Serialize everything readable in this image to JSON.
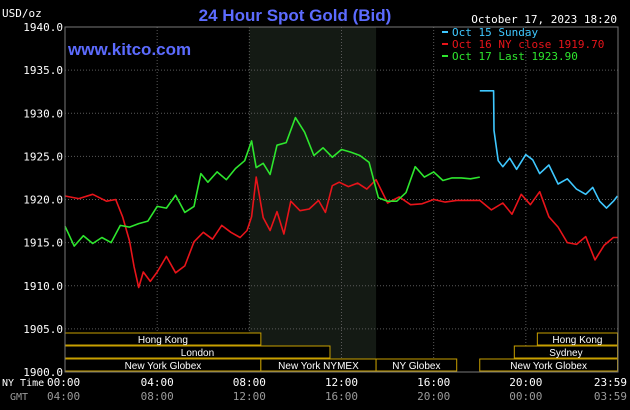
{
  "header": {
    "unit": "USD/oz",
    "title": "24 Hour Spot Gold (Bid)",
    "site": "www.kitco.com",
    "timestamp": "October 17, 2023 18:20"
  },
  "legend": [
    {
      "label": "Oct 15 Sunday",
      "color": "#3fc8ff"
    },
    {
      "label": "Oct 16 NY close 1919.70",
      "color": "#e8141a"
    },
    {
      "label": "Oct 17 Last 1923.90",
      "color": "#2ee62e"
    }
  ],
  "x_axis": {
    "ny_time_label": "NY Time",
    "gmt_label": "GMT",
    "ny_ticks": [
      "00:00",
      "04:00",
      "08:00",
      "12:00",
      "16:00",
      "20:00",
      "23:59"
    ],
    "gmt_ticks": [
      "04:00",
      "08:00",
      "12:00",
      "16:00",
      "20:00",
      "00:00",
      "03:59"
    ]
  },
  "sessions": [
    {
      "label": "Hong Kong",
      "row": 0,
      "start": 0,
      "end": 8.5
    },
    {
      "label": "London",
      "row": 1,
      "start": 0,
      "end": 11.5
    },
    {
      "label": "New York Globex",
      "row": 2,
      "start": 0,
      "end": 8.5
    },
    {
      "label": "New York NYMEX",
      "row": 2,
      "start": 8.5,
      "end": 13.5
    },
    {
      "label": "NY Globex",
      "row": 2,
      "start": 13.5,
      "end": 17.0
    },
    {
      "label": "Hong Kong",
      "row": 0,
      "start": 20.5,
      "end": 23.98
    },
    {
      "label": "Sydney",
      "row": 1,
      "start": 19.5,
      "end": 23.98
    },
    {
      "label": "New York Globex",
      "row": 2,
      "start": 18.0,
      "end": 23.98
    }
  ],
  "chart_data": {
    "type": "line",
    "xlim": [
      0,
      24
    ],
    "ylim": [
      1900,
      1940
    ],
    "y_ticks": [
      "1940.0",
      "1935.0",
      "1930.0",
      "1925.0",
      "1920.0",
      "1915.0",
      "1910.0",
      "1905.0",
      "1900.0"
    ],
    "highlight_region": [
      8,
      13.5
    ],
    "series": [
      {
        "name": "Oct 15 Sunday",
        "color": "#3fc8ff",
        "x": [
          18.0,
          18.6,
          18.62,
          18.8,
          19.0,
          19.3,
          19.6,
          20.0,
          20.3,
          20.6,
          21.0,
          21.4,
          21.8,
          22.2,
          22.6,
          22.9,
          23.2,
          23.5,
          23.8,
          23.98
        ],
        "y": [
          1932.6,
          1932.6,
          1928.0,
          1924.5,
          1923.8,
          1924.8,
          1923.5,
          1925.2,
          1924.6,
          1923.0,
          1924.0,
          1921.8,
          1922.4,
          1921.2,
          1920.6,
          1921.4,
          1919.8,
          1919.0,
          1919.8,
          1920.4
        ]
      },
      {
        "name": "Oct 16 NY close 1919.70",
        "color": "#e8141a",
        "x": [
          0,
          0.6,
          1.2,
          1.8,
          2.2,
          2.5,
          2.8,
          3.0,
          3.2,
          3.4,
          3.7,
          4.0,
          4.4,
          4.8,
          5.2,
          5.6,
          6.0,
          6.4,
          6.8,
          7.2,
          7.6,
          7.9,
          8.1,
          8.3,
          8.6,
          8.9,
          9.2,
          9.5,
          9.8,
          10.2,
          10.6,
          11.0,
          11.3,
          11.6,
          11.9,
          12.3,
          12.7,
          13.1,
          13.5,
          14.0,
          14.5,
          15.0,
          15.5,
          16.0,
          16.5,
          17.0,
          17.5,
          18.0,
          18.5,
          19.0,
          19.4,
          19.8,
          20.2,
          20.6,
          21.0,
          21.4,
          21.8,
          22.2,
          22.6,
          23.0,
          23.4,
          23.8,
          23.98
        ],
        "y": [
          1920.4,
          1920.1,
          1920.6,
          1919.8,
          1920.0,
          1918.0,
          1915.2,
          1912.2,
          1909.8,
          1911.6,
          1910.5,
          1911.6,
          1913.4,
          1911.5,
          1912.3,
          1915.1,
          1916.2,
          1915.4,
          1917.0,
          1916.2,
          1915.6,
          1916.4,
          1918.0,
          1922.6,
          1917.9,
          1916.4,
          1918.6,
          1916.0,
          1919.8,
          1918.7,
          1918.9,
          1919.9,
          1918.5,
          1921.6,
          1922.0,
          1921.5,
          1921.9,
          1921.2,
          1922.3,
          1919.6,
          1920.3,
          1919.4,
          1919.5,
          1920.0,
          1919.7,
          1919.9,
          1919.9,
          1919.9,
          1918.8,
          1919.6,
          1918.3,
          1920.6,
          1919.4,
          1920.9,
          1918.0,
          1916.8,
          1915.0,
          1914.8,
          1915.7,
          1913.0,
          1914.7,
          1915.6,
          1915.6
        ]
      },
      {
        "name": "Oct 17 Last 1923.90",
        "color": "#2ee62e",
        "x": [
          0,
          0.4,
          0.8,
          1.2,
          1.6,
          2.0,
          2.4,
          2.8,
          3.2,
          3.6,
          4.0,
          4.4,
          4.8,
          5.2,
          5.6,
          5.9,
          6.2,
          6.6,
          7.0,
          7.4,
          7.8,
          8.1,
          8.3,
          8.6,
          8.9,
          9.2,
          9.6,
          10.0,
          10.4,
          10.8,
          11.2,
          11.6,
          12.0,
          12.4,
          12.8,
          13.2,
          13.6,
          14.0,
          14.4,
          14.8,
          15.2,
          15.6,
          16.0,
          16.4,
          16.8,
          17.2,
          17.6,
          18.0
        ],
        "y": [
          1916.9,
          1914.6,
          1915.8,
          1914.9,
          1915.6,
          1915.0,
          1917.0,
          1916.8,
          1917.2,
          1917.5,
          1919.2,
          1919.0,
          1920.5,
          1918.5,
          1919.2,
          1923.0,
          1922.0,
          1923.2,
          1922.3,
          1923.6,
          1924.5,
          1926.8,
          1923.7,
          1924.2,
          1922.9,
          1926.3,
          1926.6,
          1929.5,
          1927.8,
          1925.1,
          1926.0,
          1924.9,
          1925.8,
          1925.5,
          1925.1,
          1924.3,
          1920.2,
          1919.8,
          1919.8,
          1920.8,
          1923.8,
          1922.6,
          1923.2,
          1922.2,
          1922.5,
          1922.5,
          1922.4,
          1922.6
        ]
      }
    ]
  }
}
